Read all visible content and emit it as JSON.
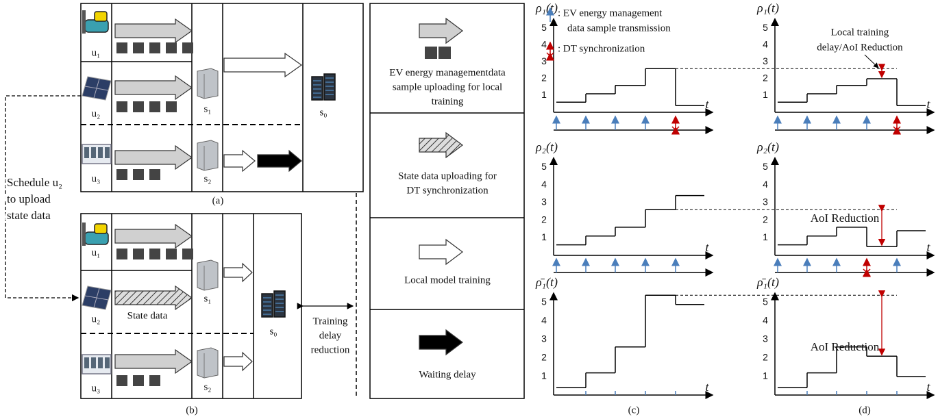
{
  "panel_a": {
    "users": [
      "u₁",
      "u₂",
      "u₃"
    ],
    "edge_servers": [
      "s₁",
      "s₂"
    ],
    "cloud": "s₀",
    "caption": "(a)"
  },
  "panel_b": {
    "users": [
      "u₁",
      "u₂",
      "u₃"
    ],
    "edge_servers": [
      "s₁",
      "s₂"
    ],
    "cloud": "s₀",
    "state_label": "State data",
    "delay_note": [
      "Training",
      "delay",
      "reduction"
    ],
    "caption": "(b)"
  },
  "schedule_note": [
    "Schedule u₂",
    "to upload",
    "state data"
  ],
  "legend": [
    {
      "lines": [
        "EV energy managementdata",
        "sample uploading for local",
        "training"
      ]
    },
    {
      "lines": [
        "State data uploading for",
        "DT synchronization"
      ]
    },
    {
      "lines": [
        "Local model training"
      ]
    },
    {
      "lines": [
        "Waiting delay"
      ]
    }
  ],
  "plot_legend": {
    "transmission": [
      ": EV energy management",
      "data sample transmission"
    ],
    "synchronization": ": DT synchronization"
  },
  "plots": [
    {
      "ylabel": "ρ₁(t)",
      "xlabel": "t",
      "yticks": [
        1,
        2,
        3,
        4,
        5
      ],
      "levels": [
        0.6,
        1.1,
        1.6,
        2.6,
        0.4
      ]
    },
    {
      "ylabel": "ρ₁(t)",
      "xlabel": "t",
      "yticks": [
        1,
        2,
        3,
        4,
        5
      ],
      "levels": [
        0.6,
        1.1,
        1.6,
        2.0,
        0.4
      ]
    },
    {
      "ylabel": "ρ₂(t)",
      "xlabel": "t",
      "yticks": [
        1,
        2,
        3,
        4,
        5
      ],
      "levels": [
        0.6,
        1.1,
        1.6,
        2.6,
        3.4
      ]
    },
    {
      "ylabel": "ρ₂(t)",
      "xlabel": "t",
      "yticks": [
        1,
        2,
        3,
        4,
        5
      ],
      "levels": [
        0.6,
        1.1,
        1.6,
        0.5,
        1.4
      ]
    },
    {
      "ylabel": "ρ̄₁(t)",
      "xlabel": "t",
      "yticks": [
        1,
        2,
        3,
        4,
        5
      ],
      "levels": [
        0.4,
        1.2,
        2.6,
        5.4,
        4.9
      ]
    },
    {
      "ylabel": "ρ̄₁(t)",
      "xlabel": "t",
      "yticks": [
        1,
        2,
        3,
        4,
        5
      ],
      "levels": [
        0.4,
        1.2,
        2.6,
        2.1,
        1.0
      ]
    }
  ],
  "annotations": {
    "local": [
      "Local training",
      "delay/AoI Reduction"
    ],
    "aoi_row2": "AoI Reduction",
    "aoi_row3": "AoI Reduction"
  },
  "captions": {
    "c": "(c)",
    "d": "(d)"
  }
}
